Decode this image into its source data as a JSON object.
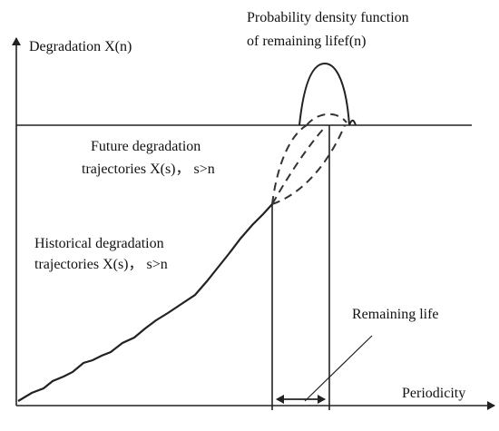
{
  "labels": {
    "pdf": [
      "Probability density function",
      "of remaining lifef(n)"
    ],
    "y_axis": "Degradation X(n)",
    "future": [
      "Future degradation",
      "trajectories X(s)， s>n"
    ],
    "historical": [
      "Historical degradation",
      "trajectories X(s)， s>n"
    ],
    "remaining_life": "Remaining life",
    "x_axis": "Periodicity"
  }
}
